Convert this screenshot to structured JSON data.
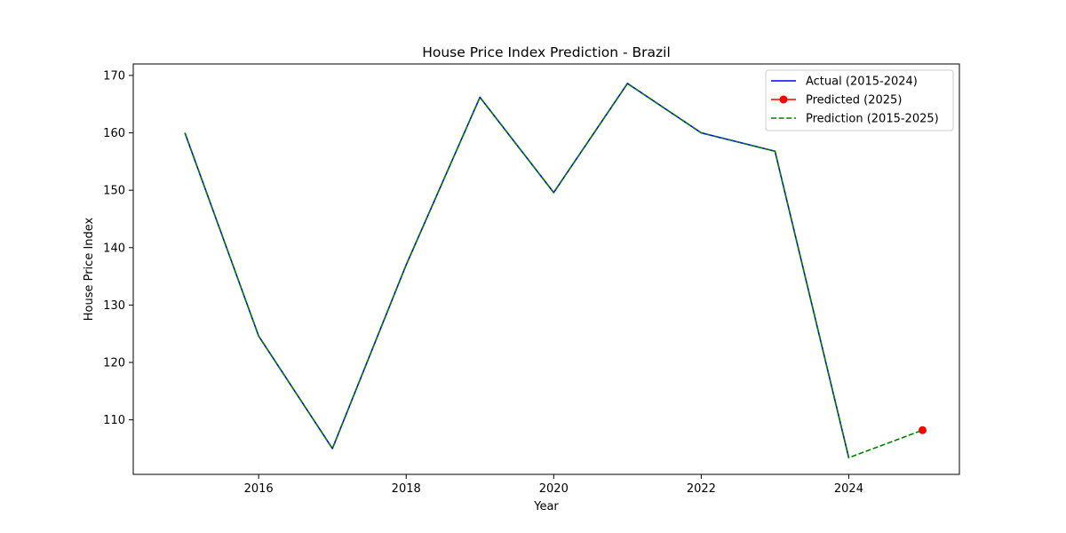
{
  "chart_data": {
    "type": "line",
    "title": "House Price Index Prediction - Brazil",
    "xlabel": "Year",
    "ylabel": "House Price Index",
    "xlim": [
      2014.3,
      2025.5
    ],
    "ylim": [
      100.5,
      172.0
    ],
    "xticks": [
      2016,
      2018,
      2020,
      2022,
      2024
    ],
    "yticks": [
      110,
      120,
      130,
      140,
      150,
      160,
      170
    ],
    "grid": false,
    "legend_position": "top-right",
    "series": [
      {
        "name": "Actual (2015-2024)",
        "color": "#0000ff",
        "style": "solid",
        "x": [
          2015,
          2016,
          2017,
          2018,
          2019,
          2020,
          2021,
          2022,
          2023,
          2024
        ],
        "y": [
          160.0,
          124.6,
          105.0,
          137.0,
          166.2,
          149.6,
          168.6,
          160.0,
          156.8,
          103.4
        ]
      },
      {
        "name": "Predicted (2025)",
        "color": "#ff0000",
        "style": "marker",
        "x": [
          2025
        ],
        "y": [
          108.2
        ]
      },
      {
        "name": "Prediction (2015-2025)",
        "color": "#008000",
        "style": "dashed",
        "x": [
          2015,
          2016,
          2017,
          2018,
          2019,
          2020,
          2021,
          2022,
          2023,
          2024,
          2025
        ],
        "y": [
          160.0,
          124.6,
          105.0,
          137.0,
          166.2,
          149.6,
          168.6,
          160.0,
          156.8,
          103.4,
          108.2
        ]
      }
    ]
  }
}
